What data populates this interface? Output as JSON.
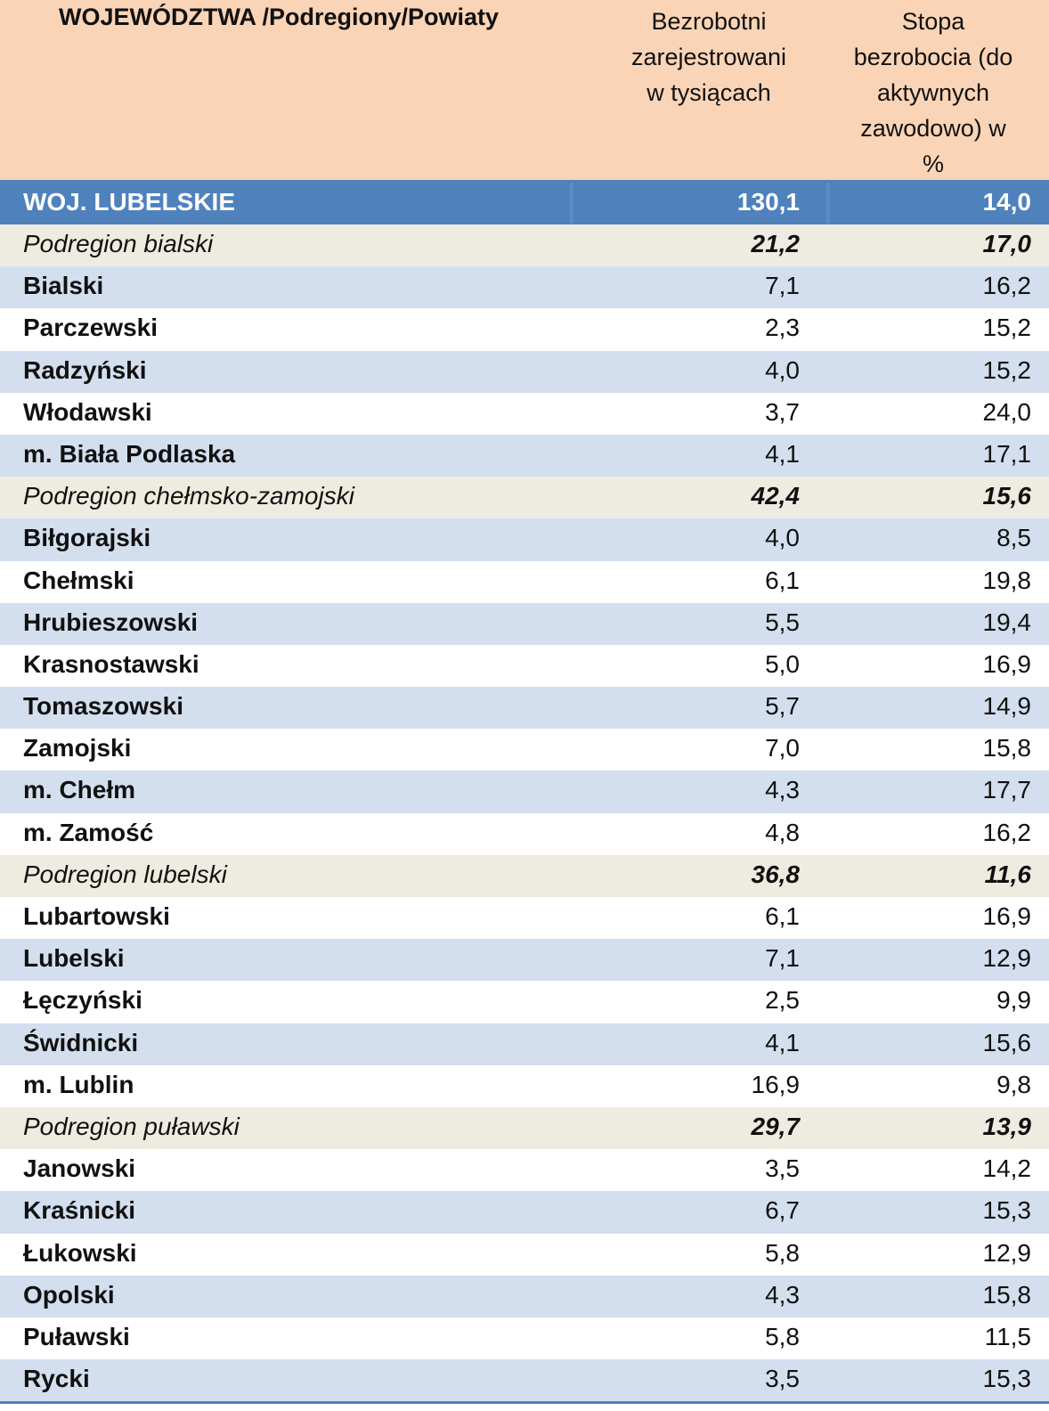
{
  "header": {
    "col1": "WOJEWÓDZTWA /Podregiony/Powiaty",
    "col2_lines": [
      "Bezrobotni",
      "zarejestrowani",
      "w tysiącach"
    ],
    "col3_lines": [
      "Stopa",
      "bezrobocia  (do",
      "aktywnych",
      "zawodowo) w",
      "%"
    ]
  },
  "rows": [
    {
      "type": "total",
      "name": "WOJ. LUBELSKIE",
      "v1": "130,1",
      "v2": "14,0"
    },
    {
      "type": "sub",
      "name": "Podregion bialski",
      "v1": "21,2",
      "v2": "17,0"
    },
    {
      "type": "blue",
      "name": "Bialski",
      "v1": "7,1",
      "v2": "16,2"
    },
    {
      "type": "white",
      "name": "Parczewski",
      "v1": "2,3",
      "v2": "15,2"
    },
    {
      "type": "blue",
      "name": "Radzyński",
      "v1": "4,0",
      "v2": "15,2"
    },
    {
      "type": "white",
      "name": "Włodawski",
      "v1": "3,7",
      "v2": "24,0"
    },
    {
      "type": "blue",
      "name": "m. Biała Podlaska",
      "v1": "4,1",
      "v2": "17,1"
    },
    {
      "type": "sub",
      "name": "Podregion chełmsko-zamojski",
      "v1": "42,4",
      "v2": "15,6"
    },
    {
      "type": "blue",
      "name": "Biłgorajski",
      "v1": "4,0",
      "v2": "8,5"
    },
    {
      "type": "white",
      "name": "Chełmski",
      "v1": "6,1",
      "v2": "19,8"
    },
    {
      "type": "blue",
      "name": "Hrubieszowski",
      "v1": "5,5",
      "v2": "19,4"
    },
    {
      "type": "white",
      "name": "Krasnostawski",
      "v1": "5,0",
      "v2": "16,9"
    },
    {
      "type": "blue",
      "name": "Tomaszowski",
      "v1": "5,7",
      "v2": "14,9"
    },
    {
      "type": "white",
      "name": "Zamojski",
      "v1": "7,0",
      "v2": "15,8"
    },
    {
      "type": "blue",
      "name": "m. Chełm",
      "v1": "4,3",
      "v2": "17,7"
    },
    {
      "type": "white",
      "name": "m. Zamość",
      "v1": "4,8",
      "v2": "16,2"
    },
    {
      "type": "sub",
      "name": "Podregion lubelski",
      "v1": "36,8",
      "v2": "11,6"
    },
    {
      "type": "white",
      "name": "Lubartowski",
      "v1": "6,1",
      "v2": "16,9"
    },
    {
      "type": "blue",
      "name": "Lubelski",
      "v1": "7,1",
      "v2": "12,9"
    },
    {
      "type": "white",
      "name": "Łęczyński",
      "v1": "2,5",
      "v2": "9,9"
    },
    {
      "type": "blue",
      "name": "Świdnicki",
      "v1": "4,1",
      "v2": "15,6"
    },
    {
      "type": "white",
      "name": "m. Lublin",
      "v1": "16,9",
      "v2": "9,8"
    },
    {
      "type": "sub",
      "name": "Podregion puławski",
      "v1": "29,7",
      "v2": "13,9"
    },
    {
      "type": "white",
      "name": "Janowski",
      "v1": "3,5",
      "v2": "14,2"
    },
    {
      "type": "blue",
      "name": "Kraśnicki",
      "v1": "6,7",
      "v2": "15,3"
    },
    {
      "type": "white",
      "name": "Łukowski",
      "v1": "5,8",
      "v2": "12,9"
    },
    {
      "type": "blue",
      "name": "Opolski",
      "v1": "4,3",
      "v2": "15,8"
    },
    {
      "type": "white",
      "name": "Puławski",
      "v1": "5,8",
      "v2": "11,5"
    },
    {
      "type": "blue",
      "name": "Rycki",
      "v1": "3,5",
      "v2": "15,3"
    }
  ]
}
